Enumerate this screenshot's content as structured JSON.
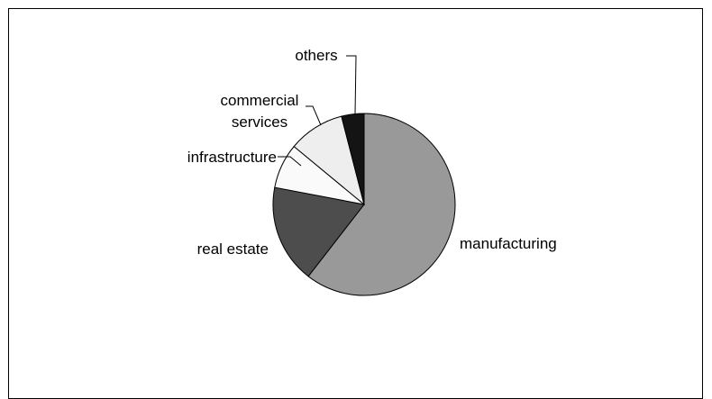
{
  "chart_data": {
    "type": "pie",
    "title": "",
    "slices": [
      {
        "label": "manufacturing",
        "value": 60.5,
        "color": "#999999"
      },
      {
        "label": "real estate",
        "value": 17.5,
        "color": "#4d4d4d"
      },
      {
        "label": "infrastructure",
        "value": 8.0,
        "color": "#fafafa"
      },
      {
        "label": "commercial services",
        "label_lines": [
          "commercial",
          "services"
        ],
        "value": 10.0,
        "color": "#eeeeee"
      },
      {
        "label": "others",
        "value": 4.0,
        "color": "#141414"
      }
    ],
    "legend": "none",
    "start": "12 o'clock, clockwise"
  }
}
